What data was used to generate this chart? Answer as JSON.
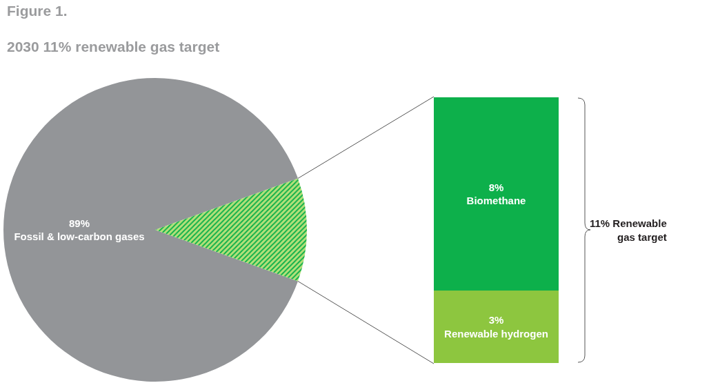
{
  "chart_data": [
    {
      "type": "pie",
      "title": "Figure 1.",
      "subtitle": "2030 11% renewable gas target",
      "categories": [
        "Fossil & low-carbon gases",
        null
      ],
      "values": [
        89,
        11
      ],
      "colors": [
        "#939598",
        "#8dc63f"
      ],
      "value_labels": [
        "89%",
        null
      ],
      "legend": false
    },
    {
      "type": "bar",
      "stacked": true,
      "categories": [
        null
      ],
      "series": [
        {
          "name": "Renewable hydrogen",
          "color": "#8dc63f",
          "values": [
            3
          ],
          "value_labels": [
            "3%"
          ]
        },
        {
          "name": "Biomethane",
          "color": "#0db04b",
          "values": [
            8
          ],
          "value_labels": [
            "8%"
          ]
        }
      ],
      "annotations": [
        "11% Renewable gas target"
      ],
      "legend": false
    }
  ]
}
